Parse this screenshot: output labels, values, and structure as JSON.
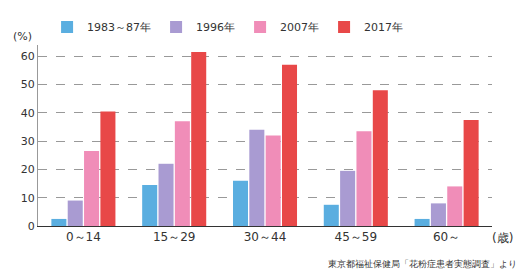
{
  "chart_data": {
    "type": "bar",
    "categories": [
      "0～14",
      "15～29",
      "30～44",
      "45～59",
      "60～"
    ],
    "series": [
      {
        "name": "1983～87年",
        "color": "#5aaee0",
        "values": [
          2.5,
          14.5,
          16,
          7.5,
          2.5
        ]
      },
      {
        "name": "1996年",
        "color": "#a99bd2",
        "values": [
          9,
          22,
          34,
          19.5,
          8
        ]
      },
      {
        "name": "2007年",
        "color": "#f08db8",
        "values": [
          26.5,
          37,
          32,
          33.5,
          14
        ]
      },
      {
        "name": "2017年",
        "color": "#e84848",
        "values": [
          40.5,
          61.5,
          57,
          48,
          37.5
        ]
      }
    ],
    "x_label": "(歳)",
    "y_label": "(%)",
    "annotations": [
      "東京都福祉保健局「花粉症患者実態調査」より"
    ],
    "ylim": [
      0,
      64
    ],
    "yticks": [
      0,
      10,
      20,
      30,
      40,
      50,
      60
    ],
    "grid": true,
    "legend": "top"
  }
}
